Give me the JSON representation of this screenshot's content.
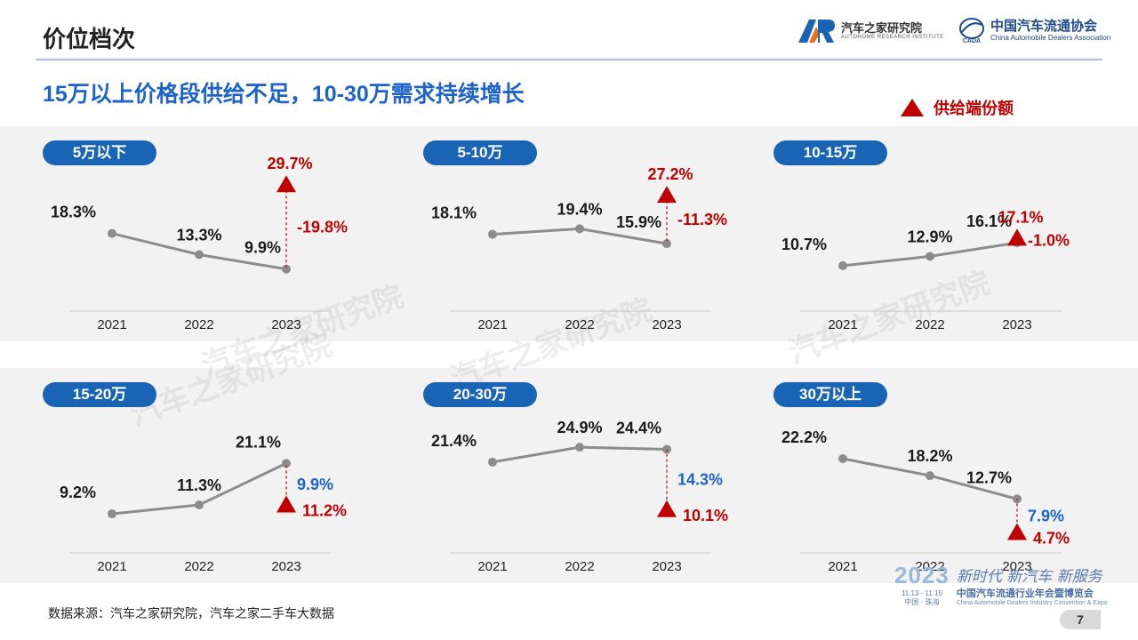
{
  "header": {
    "title": "价位档次",
    "brand1_name": "汽车之家研究院",
    "brand1_en": "AUTOHOME RESEARCH INSTITUTE",
    "brand2_name": "中国汽车流通协会",
    "brand2_en": "China Automobile Dealers Association"
  },
  "subtitle": "15万以上价格段供给不足，10-30万需求持续增长",
  "legend": {
    "label": "供给端份额",
    "color": "#c00000"
  },
  "footer": {
    "source": "数据来源：汽车之家研究院，汽车之家二手车大数据",
    "page": "7"
  },
  "expo": {
    "year": "2023",
    "dates": "11.13 - 11.15",
    "place": "中国 · 珠海",
    "slogan": "新时代 新汽车 新服务",
    "name_cn": "中国汽车流通行业年会暨博览会",
    "name_en": "China Automobile Dealers Industry Convention & Expo"
  },
  "watermark": "汽车之家研究院",
  "colors": {
    "line": "#8c8c8c",
    "supply": "#c00000",
    "gap_positive": "#1d63c8",
    "gap_negative": "#c00000",
    "pill": "#1a64b5"
  },
  "chart_data": [
    {
      "type": "line",
      "title": "5万以下",
      "x": [
        "2021",
        "2022",
        "2023"
      ],
      "labels": [
        "18.3%",
        "13.3%",
        "9.9%"
      ],
      "values": [
        18.3,
        13.3,
        9.9
      ],
      "supply": 29.7,
      "supply_label": "29.7%",
      "gap_label": "-19.8%",
      "gap_sign": "neg"
    },
    {
      "type": "line",
      "title": "5-10万",
      "x": [
        "2021",
        "2022",
        "2023"
      ],
      "labels": [
        "18.1%",
        "19.4%",
        "15.9%"
      ],
      "values": [
        18.1,
        19.4,
        15.9
      ],
      "supply": 27.2,
      "supply_label": "27.2%",
      "gap_label": "-11.3%",
      "gap_sign": "neg"
    },
    {
      "type": "line",
      "title": "10-15万",
      "x": [
        "2021",
        "2022",
        "2023"
      ],
      "labels": [
        "10.7%",
        "12.9%",
        "16.1%"
      ],
      "values": [
        10.7,
        12.9,
        16.1
      ],
      "supply": 17.1,
      "supply_label": "17.1%",
      "gap_label": "-1.0%",
      "gap_sign": "neg"
    },
    {
      "type": "line",
      "title": "15-20万",
      "x": [
        "2021",
        "2022",
        "2023"
      ],
      "labels": [
        "9.2%",
        "11.3%",
        "21.1%"
      ],
      "values": [
        9.2,
        11.3,
        21.1
      ],
      "supply": 11.2,
      "supply_label": "11.2%",
      "gap_label": "9.9%",
      "gap_sign": "pos"
    },
    {
      "type": "line",
      "title": "20-30万",
      "x": [
        "2021",
        "2022",
        "2023"
      ],
      "labels": [
        "21.4%",
        "24.9%",
        "24.4%"
      ],
      "values": [
        21.4,
        24.9,
        24.4
      ],
      "supply": 10.1,
      "supply_label": "10.1%",
      "gap_label": "14.3%",
      "gap_sign": "pos"
    },
    {
      "type": "line",
      "title": "30万以上",
      "x": [
        "2021",
        "2022",
        "2023"
      ],
      "labels": [
        "22.2%",
        "18.2%",
        "12.7%"
      ],
      "values": [
        22.2,
        18.2,
        12.7
      ],
      "supply": 4.7,
      "supply_label": "4.7%",
      "gap_label": "7.9%",
      "gap_sign": "pos"
    }
  ]
}
